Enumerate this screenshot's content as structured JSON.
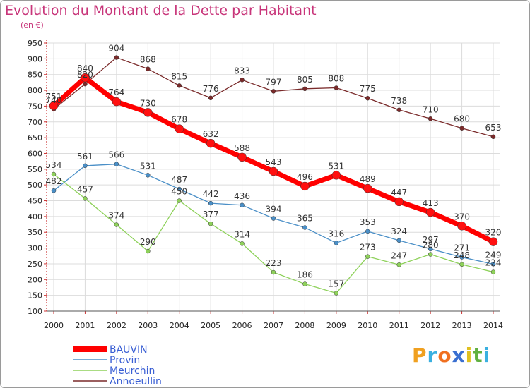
{
  "title": "Evolution du Montant de la Dette par Habitant",
  "unit": "(en €)",
  "logo": "Proxiti",
  "chart_data": {
    "type": "line",
    "title": "Evolution du Montant de la Dette par Habitant",
    "subtitle": "(en €)",
    "x": [
      "2000",
      "2001",
      "2002",
      "2003",
      "2004",
      "2005",
      "2006",
      "2007",
      "2008",
      "2009",
      "2010",
      "2011",
      "2012",
      "2013",
      "2014"
    ],
    "ylim": [
      100,
      950
    ],
    "yticks": [
      100,
      150,
      200,
      250,
      300,
      350,
      400,
      450,
      500,
      550,
      600,
      650,
      700,
      750,
      800,
      850,
      900,
      950
    ],
    "grid": true,
    "legend_position": "bottom-left",
    "series": [
      {
        "name": "BAUVIN",
        "color": "#ff0000",
        "width": 7,
        "values": [
          751,
          840,
          764,
          730,
          678,
          632,
          588,
          543,
          496,
          531,
          489,
          447,
          413,
          370,
          320
        ]
      },
      {
        "name": "Provin",
        "color": "#4a8fc7",
        "width": 1.3,
        "values": [
          482,
          561,
          566,
          531,
          487,
          442,
          436,
          394,
          365,
          316,
          353,
          324,
          297,
          271,
          249
        ]
      },
      {
        "name": "Meurchin",
        "color": "#8ed15a",
        "width": 1.3,
        "values": [
          534,
          457,
          374,
          290,
          450,
          377,
          314,
          223,
          186,
          157,
          273,
          247,
          280,
          248,
          224
        ]
      },
      {
        "name": "Annoeullin",
        "color": "#7a2a2a",
        "width": 1.3,
        "values": [
          740,
          820,
          904,
          868,
          815,
          776,
          833,
          797,
          805,
          808,
          775,
          738,
          710,
          680,
          653
        ]
      }
    ]
  }
}
